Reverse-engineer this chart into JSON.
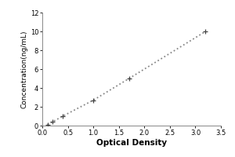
{
  "x_data": [
    0.1,
    0.2,
    0.4,
    1.0,
    1.7,
    3.2
  ],
  "y_data": [
    0.1,
    0.4,
    1.0,
    2.7,
    5.0,
    10.0
  ],
  "xlabel": "Optical Density",
  "ylabel": "Concentration(ng/mL)",
  "xlim": [
    0,
    3.5
  ],
  "ylim": [
    0,
    12
  ],
  "xticks": [
    0,
    0.5,
    1.0,
    1.5,
    2.0,
    2.5,
    3.0,
    3.5
  ],
  "yticks": [
    0,
    2,
    4,
    6,
    8,
    10,
    12
  ],
  "line_color": "#888888",
  "marker_color": "#444444",
  "bg_color": "#ffffff",
  "outer_bg": "#ffffff",
  "tick_fontsize": 6.0,
  "xlabel_fontsize": 7.5,
  "ylabel_fontsize": 6.5
}
